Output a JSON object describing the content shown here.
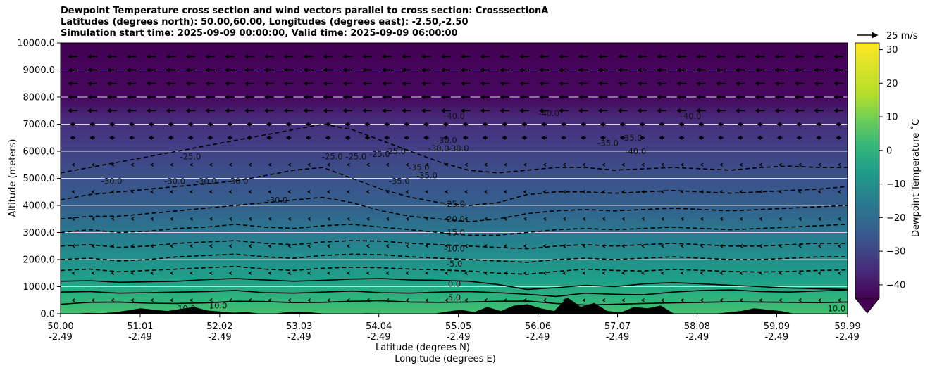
{
  "chart_data": {
    "type": "contour",
    "title_lines": [
      "Dewpoint Temperature cross section and wind vectors parallel to cross section: CrosssectionA",
      "Latitudes (degrees north): 50.00,60.00, Longitudes (degrees east): -2.50,-2.50",
      "Simulation start time: 2025-09-09 00:00:00, Valid time: 2025-09-09 06:00:00"
    ],
    "xlabel_primary": "Latitude (degrees N)",
    "xlabel_secondary": "Longitude (degrees E)",
    "ylabel": "Altitude (meters)",
    "xlim": [
      50.0,
      59.99
    ],
    "ylim": [
      0,
      10000
    ],
    "x_ticks": [
      {
        "lat": "50.00",
        "lon": "-2.49",
        "value": 50.0
      },
      {
        "lat": "51.01",
        "lon": "-2.49",
        "value": 51.01
      },
      {
        "lat": "52.02",
        "lon": "-2.49",
        "value": 52.02
      },
      {
        "lat": "53.03",
        "lon": "-2.49",
        "value": 53.03
      },
      {
        "lat": "54.04",
        "lon": "-2.49",
        "value": 54.04
      },
      {
        "lat": "55.05",
        "lon": "-2.49",
        "value": 55.05
      },
      {
        "lat": "56.06",
        "lon": "-2.49",
        "value": 56.06
      },
      {
        "lat": "57.07",
        "lon": "-2.49",
        "value": 57.07
      },
      {
        "lat": "58.08",
        "lon": "-2.49",
        "value": 58.08
      },
      {
        "lat": "59.09",
        "lon": "-2.49",
        "value": 59.09
      },
      {
        "lat": "59.99",
        "lon": "-2.49",
        "value": 59.99
      }
    ],
    "y_ticks": [
      {
        "label": "0.0",
        "value": 0
      },
      {
        "label": "1000.0",
        "value": 1000
      },
      {
        "label": "2000.0",
        "value": 2000
      },
      {
        "label": "3000.0",
        "value": 3000
      },
      {
        "label": "4000.0",
        "value": 4000
      },
      {
        "label": "5000.0",
        "value": 5000
      },
      {
        "label": "6000.0",
        "value": 6000
      },
      {
        "label": "7000.0",
        "value": 7000
      },
      {
        "label": "8000.0",
        "value": 8000
      },
      {
        "label": "9000.0",
        "value": 9000
      },
      {
        "label": "10000.0",
        "value": 10000
      }
    ],
    "grid": "horizontal",
    "colorbar": {
      "label": "Dewpoint Temperature ˚C",
      "range": [
        -44,
        32
      ],
      "ticks": [
        {
          "label": "30",
          "value": 30
        },
        {
          "label": "20",
          "value": 20
        },
        {
          "label": "10",
          "value": 10
        },
        {
          "label": "0",
          "value": 0
        },
        {
          "label": "−10",
          "value": -10
        },
        {
          "label": "−20",
          "value": -20
        },
        {
          "label": "−30",
          "value": -30
        },
        {
          "label": "−40",
          "value": -40
        }
      ],
      "colormap": "viridis",
      "extend": "min"
    },
    "wind_key": {
      "label": "25 m/s",
      "value": 25
    },
    "contours": [
      {
        "value": 5.0,
        "style": "solid",
        "heights": [
          350,
          420,
          430,
          390,
          380,
          400,
          460,
          450,
          410,
          420,
          460,
          480,
          430,
          420,
          430,
          460,
          470,
          380,
          320,
          350,
          380,
          400,
          420,
          440,
          430,
          420,
          410,
          430
        ]
      },
      {
        "value": 0.0,
        "style": "solid",
        "heights": [
          800,
          820,
          760,
          780,
          800,
          820,
          860,
          780,
          760,
          800,
          840,
          780,
          760,
          800,
          820,
          780,
          720,
          640,
          760,
          720,
          700,
          800,
          860,
          880,
          820,
          800,
          840,
          880
        ]
      },
      {
        "value": -5.0,
        "style": "solid",
        "heights": [
          1200,
          1220,
          1160,
          1180,
          1200,
          1260,
          1300,
          1250,
          1200,
          1230,
          1280,
          1300,
          1250,
          1230,
          1200,
          1080,
          900,
          960,
          1050,
          1000,
          1100,
          1150,
          1100,
          1050,
          1000,
          950,
          920,
          900
        ]
      },
      {
        "value": -10.0,
        "style": "dashed",
        "heights": [
          1600,
          1650,
          1550,
          1600,
          1650,
          1700,
          1750,
          1650,
          1600,
          1680,
          1720,
          1700,
          1650,
          1620,
          1580,
          1500,
          1460,
          1560,
          1650,
          1600,
          1580,
          1640,
          1600,
          1560,
          1540,
          1560,
          1600,
          1620
        ]
      },
      {
        "value": -15.0,
        "style": "dashed",
        "heights": [
          2000,
          2050,
          1950,
          2000,
          2100,
          2150,
          2200,
          2100,
          2050,
          2150,
          2200,
          2180,
          2100,
          2050,
          2000,
          1950,
          1900,
          2000,
          2050,
          2000,
          2050,
          2100,
          2050,
          2000,
          2000,
          2050,
          2100,
          2100
        ]
      },
      {
        "value": -20.0,
        "style": "dashed",
        "heights": [
          2500,
          2550,
          2450,
          2500,
          2600,
          2650,
          2700,
          2600,
          2550,
          2650,
          2700,
          2680,
          2600,
          2550,
          2500,
          2450,
          2400,
          2500,
          2550,
          2500,
          2550,
          2600,
          2550,
          2500,
          2500,
          2550,
          2600,
          2600
        ]
      },
      {
        "value": -25.0,
        "style": "dashed",
        "heights": [
          3000,
          3100,
          3000,
          3050,
          3150,
          3200,
          3300,
          3200,
          3150,
          3250,
          3300,
          3200,
          3100,
          3000,
          2900,
          2900,
          3000,
          3100,
          3150,
          3100,
          3150,
          3200,
          3150,
          3100,
          3150,
          3200,
          3250,
          3300
        ]
      },
      {
        "value": -30.0,
        "style": "dashed",
        "heights": [
          3500,
          3600,
          3600,
          3700,
          3800,
          3900,
          4000,
          4100,
          4200,
          4300,
          4100,
          3800,
          3600,
          3500,
          3400,
          3500,
          3700,
          3800,
          3850,
          3800,
          3850,
          3900,
          3850,
          3800,
          3850,
          3900,
          3950,
          4000
        ]
      },
      {
        "value": -35.0,
        "style": "dashed",
        "heights": [
          4200,
          4400,
          4500,
          4600,
          4700,
          4800,
          4900,
          5100,
          5300,
          5400,
          5000,
          4600,
          4300,
          4100,
          4000,
          4100,
          4400,
          4500,
          4500,
          4450,
          4500,
          4550,
          4500,
          4450,
          4500,
          4550,
          4600,
          4700
        ]
      },
      {
        "value": -40.0,
        "style": "dashed",
        "heights": [
          5200,
          5400,
          5600,
          5800,
          6000,
          6200,
          6400,
          6600,
          6800,
          7000,
          6800,
          6400,
          6000,
          5600,
          5300,
          5200,
          5300,
          5400,
          5400,
          5300,
          5350,
          5400,
          5350,
          5300,
          5400,
          5450,
          5400,
          5400
        ]
      }
    ],
    "contour_labels": [
      {
        "text": "-30.0",
        "x": 50.65,
        "y": 4900
      },
      {
        "text": "-25.0",
        "x": 51.65,
        "y": 5800
      },
      {
        "text": "-30.0",
        "x": 51.45,
        "y": 4900
      },
      {
        "text": "-30.0",
        "x": 51.85,
        "y": 4900
      },
      {
        "text": "-30.0",
        "x": 52.25,
        "y": 4900
      },
      {
        "text": "-30.0",
        "x": 52.75,
        "y": 4200
      },
      {
        "text": "-25.0",
        "x": 53.45,
        "y": 5800
      },
      {
        "text": "-25.0",
        "x": 53.75,
        "y": 5800
      },
      {
        "text": "-25.0",
        "x": 54.05,
        "y": 5900
      },
      {
        "text": "-25.0",
        "x": 54.25,
        "y": 6000
      },
      {
        "text": "-35.0",
        "x": 54.3,
        "y": 4900
      },
      {
        "text": "-35.0",
        "x": 54.65,
        "y": 5100
      },
      {
        "text": "-35.0",
        "x": 54.55,
        "y": 5400
      },
      {
        "text": "-30.0",
        "x": 54.9,
        "y": 6400
      },
      {
        "text": "-30.0",
        "x": 54.8,
        "y": 6100
      },
      {
        "text": "-30.0",
        "x": 55.05,
        "y": 6100
      },
      {
        "text": "-40.0",
        "x": 55.0,
        "y": 7300
      },
      {
        "text": "-40.0",
        "x": 56.2,
        "y": 7400
      },
      {
        "text": "-35.0",
        "x": 56.95,
        "y": 6300
      },
      {
        "text": "-35.0",
        "x": 57.25,
        "y": 6500
      },
      {
        "text": "-40.0",
        "x": 57.3,
        "y": 6000
      },
      {
        "text": "-40.0",
        "x": 58.0,
        "y": 7300
      },
      {
        "text": "-25.0",
        "x": 55.0,
        "y": 4050
      },
      {
        "text": "-20.0",
        "x": 55.0,
        "y": 3500
      },
      {
        "text": "-15.0",
        "x": 55.0,
        "y": 3000
      },
      {
        "text": "-10.0",
        "x": 55.0,
        "y": 2400
      },
      {
        "text": "-5.0",
        "x": 55.0,
        "y": 1850
      },
      {
        "text": "0.0",
        "x": 55.0,
        "y": 1100
      },
      {
        "text": "5.0",
        "x": 55.0,
        "y": 600
      },
      {
        "text": "10.0",
        "x": 51.6,
        "y": 200
      },
      {
        "text": "10.0",
        "x": 52.0,
        "y": 300
      },
      {
        "text": "10.0",
        "x": 59.85,
        "y": 200
      }
    ],
    "terrain_heights": [
      0,
      0,
      30,
      20,
      50,
      120,
      200,
      150,
      100,
      180,
      250,
      120,
      80,
      40,
      60,
      0,
      0,
      60,
      80,
      40,
      0,
      0,
      0,
      20,
      10,
      0,
      0,
      0,
      0,
      80,
      150,
      60,
      250,
      100,
      300,
      350,
      200,
      100,
      600,
      250,
      400,
      100,
      50,
      250,
      200,
      300,
      0,
      0,
      0,
      0,
      50,
      100,
      200,
      150,
      100,
      0,
      0,
      0,
      0,
      0
    ]
  }
}
